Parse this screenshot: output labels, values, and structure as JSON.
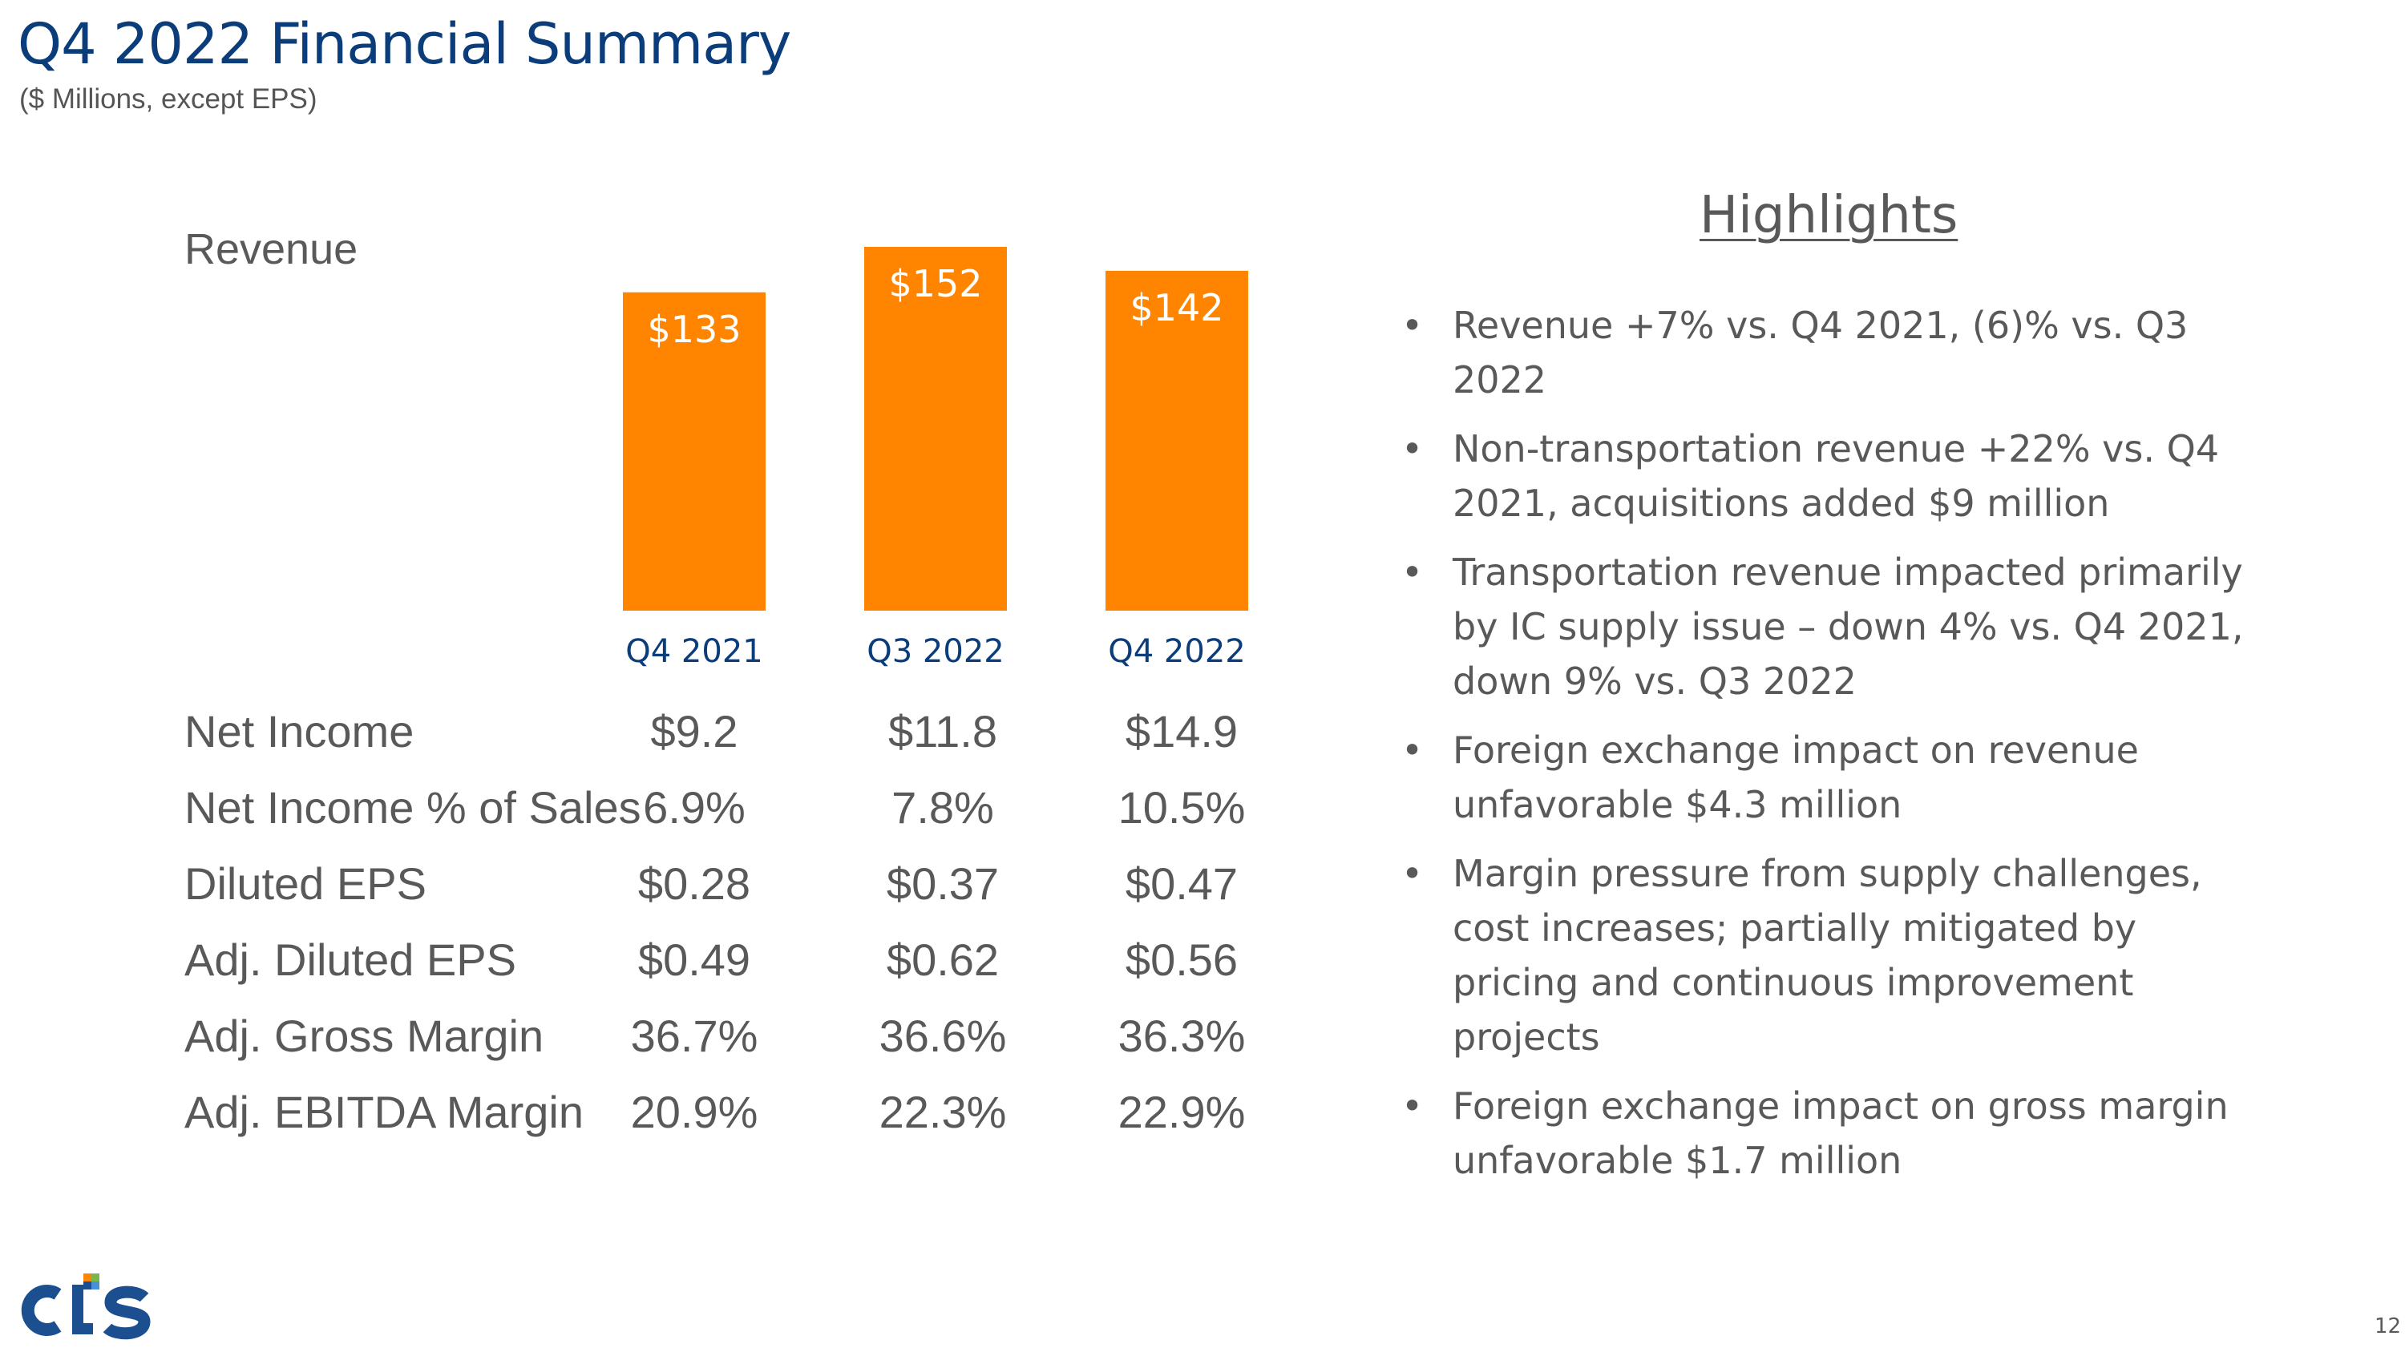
{
  "slide": {
    "title": "Q4 2022 Financial Summary",
    "subtitle": "($ Millions, except EPS)",
    "page_number": "12",
    "logo_text": "CTS"
  },
  "chart_data": {
    "type": "bar",
    "title": "Revenue",
    "categories": [
      "Q4 2021",
      "Q3 2022",
      "Q4 2022"
    ],
    "values": [
      133,
      152,
      142
    ],
    "data_labels": [
      "$133",
      "$152",
      "$142"
    ],
    "ylim": [
      0,
      152
    ],
    "xlabel": "",
    "ylabel": "",
    "grid": false,
    "colors": {
      "bar": "#ff8400",
      "label": "#ffffff",
      "category": "#0b3d7a"
    }
  },
  "metrics": [
    {
      "label": "Net Income",
      "values": [
        "$9.2",
        "$11.8",
        "$14.9"
      ]
    },
    {
      "label": "Net Income % of Sales",
      "values": [
        "6.9%",
        "7.8%",
        "10.5%"
      ]
    },
    {
      "label": "Diluted EPS",
      "values": [
        "$0.28",
        "$0.37",
        "$0.47"
      ]
    },
    {
      "label": "Adj. Diluted EPS",
      "values": [
        "$0.49",
        "$0.62",
        "$0.56"
      ]
    },
    {
      "label": "Adj. Gross Margin",
      "values": [
        "36.7%",
        "36.6%",
        "36.3%"
      ]
    },
    {
      "label": "Adj. EBITDA Margin",
      "values": [
        "20.9%",
        "22.3%",
        "22.9%"
      ]
    }
  ],
  "highlights": {
    "title": "Highlights",
    "items": [
      "Revenue +7% vs. Q4 2021, (6)% vs. Q3 2022",
      "Non-transportation revenue +22% vs. Q4 2021, acquisitions added $9 million",
      "Transportation revenue impacted primarily by IC supply issue – down 4% vs. Q4 2021, down 9% vs. Q3 2022",
      "Foreign exchange impact on revenue unfavorable $4.3 million",
      "Margin pressure from supply challenges, cost increases; partially mitigated by pricing and continuous improvement projects",
      "Foreign exchange impact on gross margin unfavorable $1.7 million"
    ]
  }
}
